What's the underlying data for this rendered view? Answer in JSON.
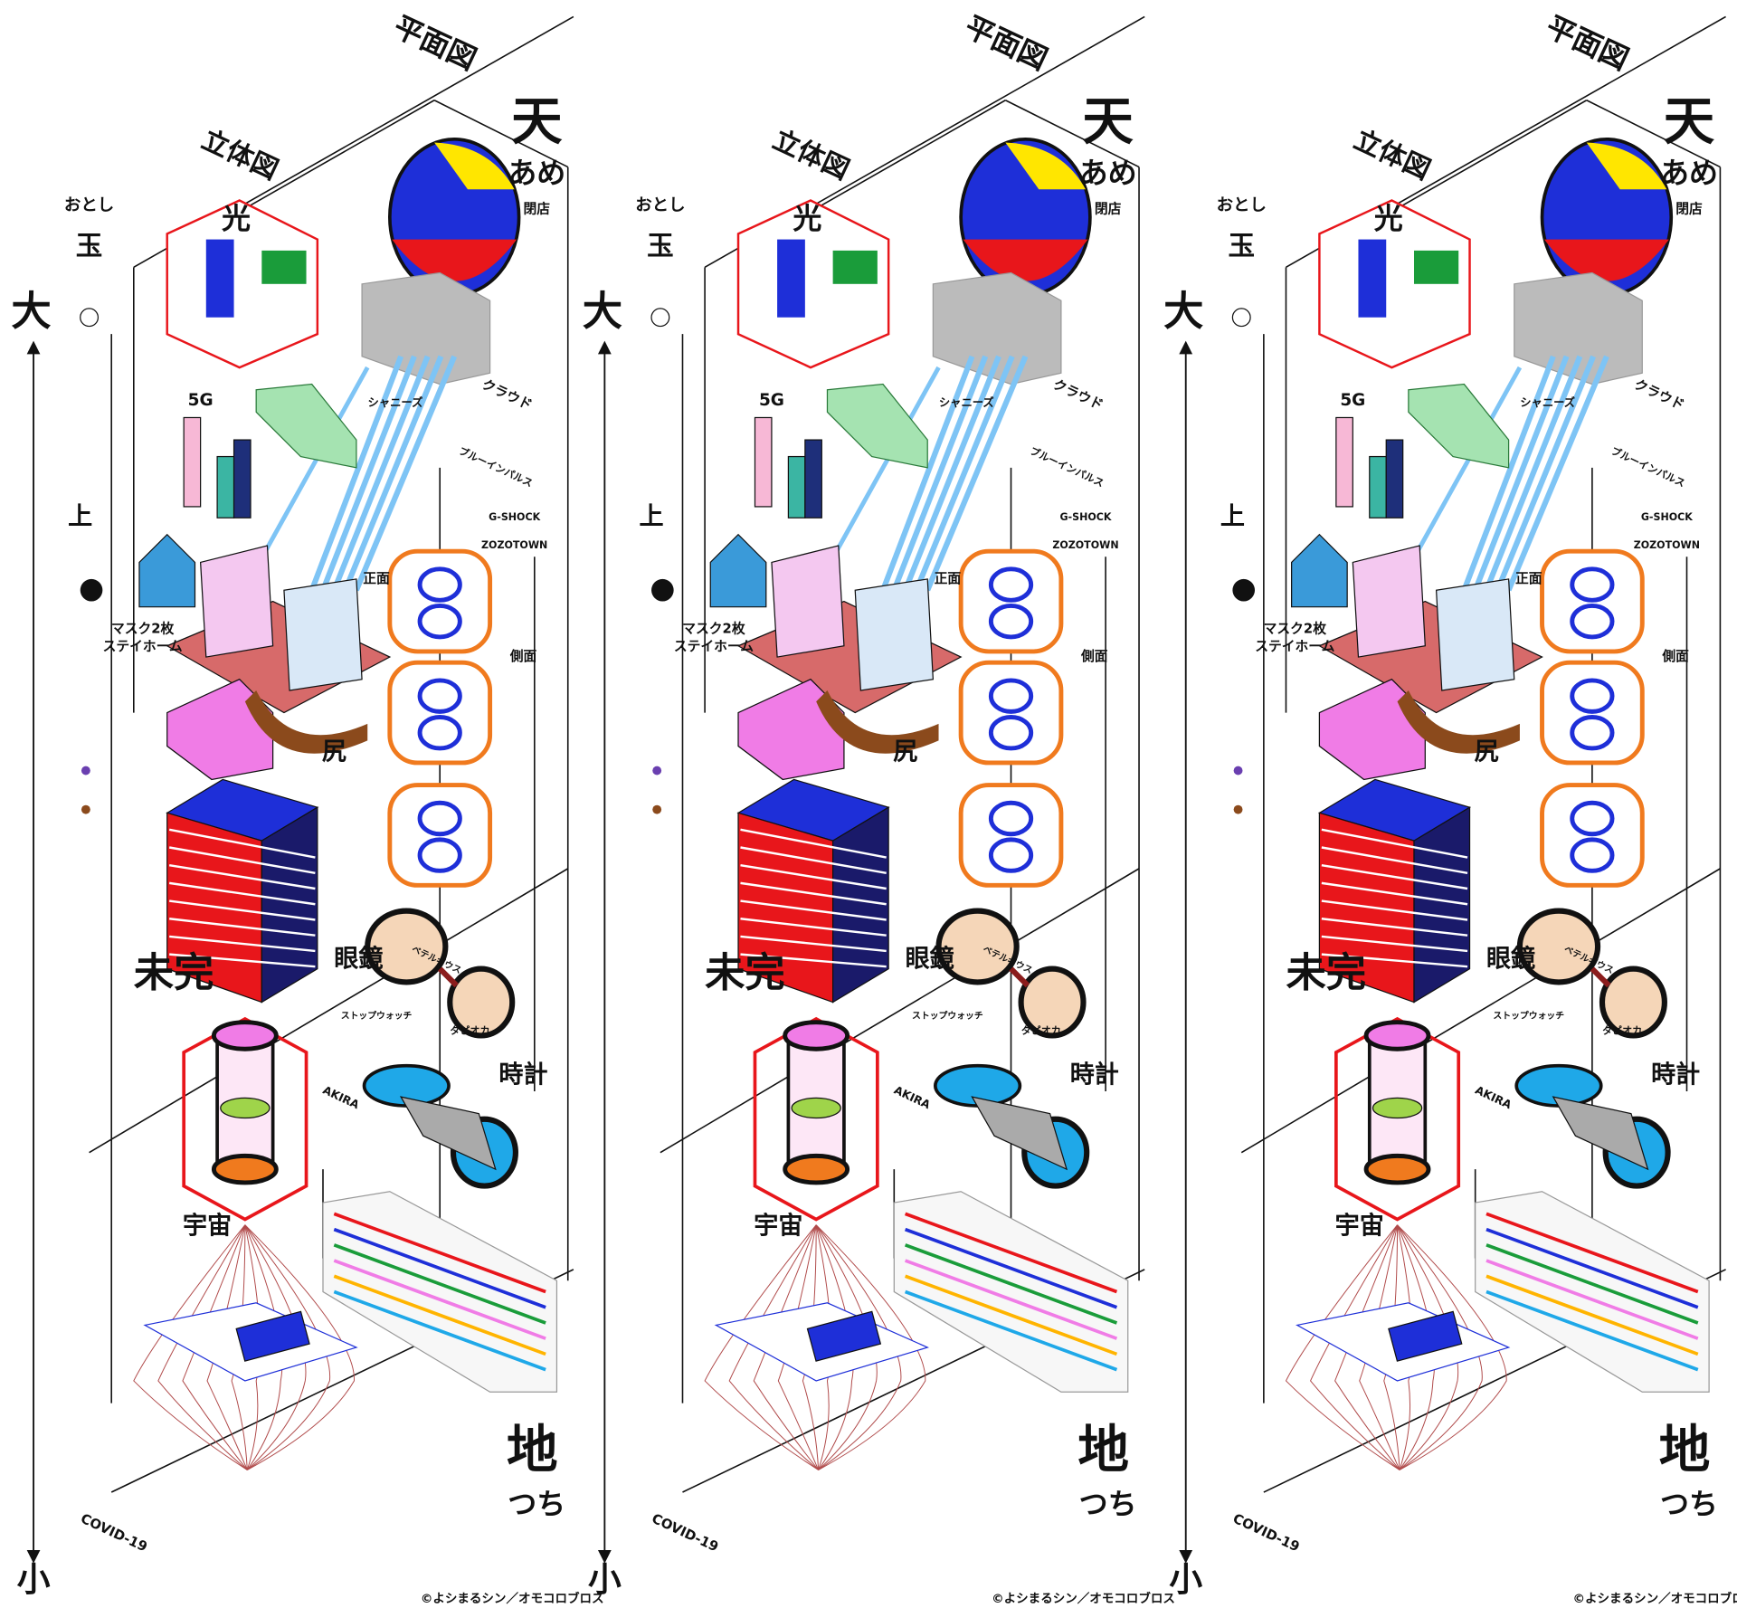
{
  "labels": {
    "plan": "平面図",
    "elevation": "立体図",
    "otoshi": "おとし",
    "tama": "玉",
    "big": "大",
    "small": "小",
    "ten": "天",
    "ame": "あめ",
    "closed": "閉店",
    "chi": "地",
    "tsuchi": "つち",
    "fiveg": "5G",
    "ue": "上",
    "cloud": "クラウド",
    "johnnys": "シャニーズ",
    "blue_impulse": "ブルーインパルス",
    "gshock": "G-SHOCK",
    "zozotown": "ZOZOTOWN",
    "front": "正面",
    "side": "側面",
    "shiri": "尻",
    "megane": "眼鏡",
    "tokei": "時計",
    "akira": "AKIRA",
    "uchu": "宇宙",
    "covid": "COVID-19",
    "mikan": "未完",
    "mask": "マスク2枚",
    "stayhome": "ステイホーム",
    "hikari": "光",
    "stopwatch": "ストップウォッチ",
    "tapioca": "タピオカ",
    "betelgeuse": "ベテルギウス",
    "credit": "©よシまるシン／オモコロブロス"
  }
}
